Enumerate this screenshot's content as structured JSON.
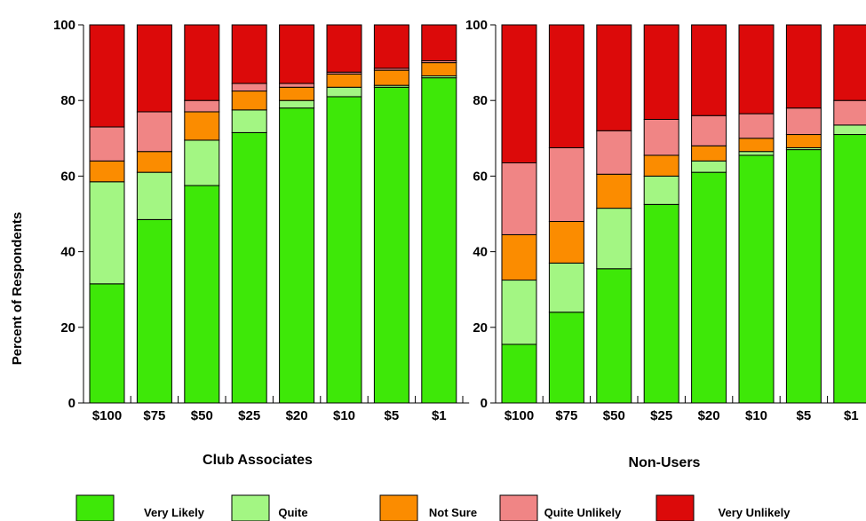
{
  "chart_data": {
    "type": "bar",
    "stacked": true,
    "y_label": "Percent of Respondents",
    "ylim": [
      0,
      100
    ],
    "y_ticks": [
      "0",
      "20",
      "40",
      "60",
      "80",
      "100"
    ],
    "legend_position": "bottom",
    "series_info": [
      {
        "name": "Very Likely",
        "color": "#3ee808"
      },
      {
        "name": "Quite",
        "color": "#a3f683"
      },
      {
        "name": "Not Sure",
        "color": "#fb8c00"
      },
      {
        "name": "Quite Unlikely",
        "color": "#f08585"
      },
      {
        "name": "Very Unlikely",
        "color": "#dc0a0a"
      }
    ],
    "panels": [
      {
        "title": "Club Associates",
        "categories": [
          "$100",
          "$75",
          "$50",
          "$25",
          "$20",
          "$10",
          "$5",
          "$1"
        ],
        "series": [
          {
            "name": "Very Likely",
            "values": [
              31.5,
              48.5,
              57.5,
              71.5,
              78.0,
              81.0,
              83.5,
              86.0
            ]
          },
          {
            "name": "Quite",
            "values": [
              27.0,
              12.5,
              12.0,
              6.0,
              2.0,
              2.5,
              0.5,
              0.5
            ]
          },
          {
            "name": "Not Sure",
            "values": [
              5.5,
              5.5,
              7.5,
              5.0,
              3.5,
              3.5,
              4.0,
              3.5
            ]
          },
          {
            "name": "Quite Unlikely",
            "values": [
              9.0,
              10.5,
              3.0,
              2.0,
              1.0,
              0.5,
              0.5,
              0.5
            ]
          },
          {
            "name": "Very Unlikely",
            "values": [
              27.0,
              23.0,
              20.0,
              15.5,
              15.5,
              12.5,
              11.5,
              9.5
            ]
          }
        ]
      },
      {
        "title": "Non-Users",
        "categories": [
          "$100",
          "$75",
          "$50",
          "$25",
          "$20",
          "$10",
          "$5",
          "$1"
        ],
        "series": [
          {
            "name": "Very Likely",
            "values": [
              15.5,
              24.0,
              35.5,
              52.5,
              61.0,
              65.5,
              67.0,
              71.0
            ]
          },
          {
            "name": "Quite",
            "values": [
              17.0,
              13.0,
              16.0,
              7.5,
              3.0,
              1.0,
              0.5,
              2.5
            ]
          },
          {
            "name": "Not Sure",
            "values": [
              12.0,
              11.0,
              9.0,
              5.5,
              4.0,
              3.5,
              3.5,
              0.0
            ]
          },
          {
            "name": "Quite Unlikely",
            "values": [
              19.0,
              19.5,
              11.5,
              9.5,
              8.0,
              6.5,
              7.0,
              6.5
            ]
          },
          {
            "name": "Very Unlikely",
            "values": [
              36.5,
              32.5,
              28.0,
              25.0,
              24.0,
              23.5,
              22.0,
              20.0
            ]
          }
        ]
      }
    ]
  }
}
